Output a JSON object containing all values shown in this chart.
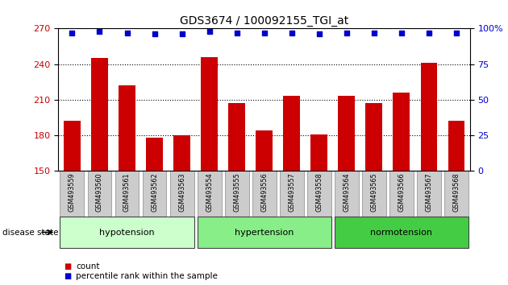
{
  "title": "GDS3674 / 100092155_TGI_at",
  "categories": [
    "GSM493559",
    "GSM493560",
    "GSM493561",
    "GSM493562",
    "GSM493563",
    "GSM493554",
    "GSM493555",
    "GSM493556",
    "GSM493557",
    "GSM493558",
    "GSM493564",
    "GSM493565",
    "GSM493566",
    "GSM493567",
    "GSM493568"
  ],
  "bar_values": [
    192,
    245,
    222,
    178,
    180,
    246,
    207,
    184,
    213,
    181,
    213,
    207,
    216,
    241,
    192
  ],
  "percentile_values": [
    97,
    98,
    97,
    96,
    96,
    98,
    97,
    97,
    97,
    96,
    97,
    97,
    97,
    97,
    97
  ],
  "bar_color": "#cc0000",
  "percentile_color": "#0000cc",
  "ylim_left": [
    150,
    270
  ],
  "ylim_right": [
    0,
    100
  ],
  "yticks_left": [
    150,
    180,
    210,
    240,
    270
  ],
  "yticks_right": [
    0,
    25,
    50,
    75,
    100
  ],
  "ytick_labels_right": [
    "0",
    "25",
    "50",
    "75",
    "100%"
  ],
  "group_data": [
    {
      "label": "hypotension",
      "start": 0,
      "end": 4,
      "color": "#ccffcc"
    },
    {
      "label": "hypertension",
      "start": 5,
      "end": 9,
      "color": "#88ee88"
    },
    {
      "label": "normotension",
      "start": 10,
      "end": 14,
      "color": "#44cc44"
    }
  ],
  "disease_state_label": "disease state",
  "bar_width": 0.6,
  "ticklabel_color_left": "#cc0000",
  "ticklabel_color_right": "#0000cc",
  "label_box_color": "#cccccc",
  "label_box_edge_color": "#888888"
}
